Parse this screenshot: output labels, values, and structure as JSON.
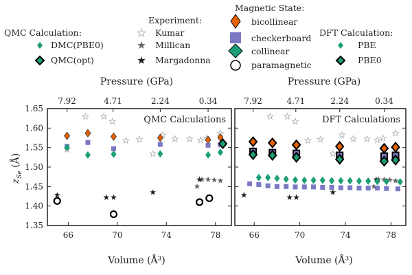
{
  "legend": {
    "qmc": {
      "title": "QMC Calculation:",
      "items": [
        "DMC(PBE0)",
        "QMC(opt)"
      ]
    },
    "experiment": {
      "title": "Experiment:",
      "items": [
        "Kumar",
        "Millican",
        "Margadonna"
      ]
    },
    "magnetic": {
      "title": "Magnetic State:",
      "items": [
        "bicollinear",
        "checkerboard",
        "collinear",
        "paramagnetic"
      ]
    },
    "dft": {
      "title": "DFT Calculation:",
      "items": [
        "PBE",
        "PBE0"
      ]
    }
  },
  "colors": {
    "bicollinear": "#e66100",
    "checkerboard": "#7b78c4",
    "collinear": "#1b9e77",
    "paramagnetic": "#ffffff",
    "kumar": "#b8b8b8",
    "millican": "#666666",
    "margadonna": "#222222"
  },
  "chart_data": [
    {
      "type": "scatter",
      "title": "QMC Calculations",
      "xlabel": "Volume (Å³)",
      "ylabel": "z_Se (Å)",
      "top_xlabel": "Pressure (GPa)",
      "xlim": [
        64.3,
        79.3
      ],
      "ylim": [
        1.35,
        1.65
      ],
      "x_ticks": [
        66,
        70,
        74,
        78
      ],
      "y_ticks": [
        1.35,
        1.4,
        1.45,
        1.5,
        1.55,
        1.6,
        1.65
      ],
      "top_ticks": [
        {
          "x": 65.9,
          "label": "7.92"
        },
        {
          "x": 69.65,
          "label": "4.71"
        },
        {
          "x": 73.5,
          "label": "2.24"
        },
        {
          "x": 77.4,
          "label": "0.34"
        }
      ],
      "series": [
        {
          "name": "Kumar",
          "marker": "star",
          "color": "#b8b8b8",
          "x": [
            65.9,
            67.4,
            68.9,
            69.6,
            70.7,
            71.8,
            72.9,
            73.7,
            74.7,
            75.9,
            76.8,
            77.3,
            78.4
          ],
          "y": [
            1.545,
            1.63,
            1.63,
            1.617,
            1.568,
            1.571,
            1.534,
            1.582,
            1.572,
            1.572,
            1.569,
            1.574,
            1.587
          ]
        },
        {
          "name": "Millican",
          "marker": "star",
          "color": "#666666",
          "x": [
            76.5,
            76.9,
            77.4,
            77.9,
            78.4
          ],
          "y": [
            1.45,
            1.468,
            1.468,
            1.467,
            1.465
          ]
        },
        {
          "name": "Margadonna",
          "marker": "star",
          "color": "#222222",
          "x": [
            65.1,
            69.1,
            69.7,
            72.9,
            76.7
          ],
          "y": [
            1.428,
            1.422,
            1.422,
            1.435,
            1.468
          ]
        },
        {
          "name": "DMC(PBE0) bicollinear",
          "marker": "diamond",
          "color": "#e66100",
          "x": [
            65.9,
            67.6,
            69.7,
            73.5,
            77.4,
            78.4
          ],
          "y": [
            1.58,
            1.587,
            1.578,
            1.575,
            1.57,
            1.576
          ]
        },
        {
          "name": "DMC(PBE0) checkerboard",
          "marker": "square",
          "color": "#7b78c4",
          "x": [
            65.9,
            67.6,
            69.7,
            73.5,
            77.4,
            78.4
          ],
          "y": [
            1.553,
            1.563,
            1.547,
            1.558,
            1.556,
            1.557
          ]
        },
        {
          "name": "DMC(PBE0) collinear",
          "marker": "diamond",
          "color": "#1b9e77",
          "x": [
            65.9,
            67.6,
            69.7,
            73.5,
            77.4,
            78.4
          ],
          "y": [
            1.55,
            1.531,
            1.533,
            1.534,
            1.531,
            1.538
          ]
        },
        {
          "name": "QMC(opt) paramagnetic",
          "marker": "circle",
          "color": "#ffffff",
          "x": [
            65.1,
            69.7,
            76.7,
            77.5
          ],
          "y": [
            1.413,
            1.379,
            1.41,
            1.42
          ]
        },
        {
          "name": "QMC(opt) collinear",
          "marker": "diamond-bold",
          "color": "#1b9e77",
          "x": [
            78.6
          ],
          "y": [
            1.56
          ]
        }
      ]
    },
    {
      "type": "scatter",
      "title": "DFT Calculations",
      "xlabel": "Volume (Å³)",
      "ylabel": "",
      "top_xlabel": "Pressure (GPa)",
      "xlim": [
        64.3,
        79.3
      ],
      "ylim": [
        1.35,
        1.65
      ],
      "x_ticks": [
        66,
        70,
        74,
        78
      ],
      "y_ticks": [
        1.35,
        1.4,
        1.45,
        1.5,
        1.55,
        1.6,
        1.65
      ],
      "top_ticks": [
        {
          "x": 65.9,
          "label": "7.92"
        },
        {
          "x": 69.65,
          "label": "4.71"
        },
        {
          "x": 73.5,
          "label": "2.24"
        },
        {
          "x": 77.4,
          "label": "0.34"
        }
      ],
      "series": [
        {
          "name": "Kumar",
          "marker": "star",
          "color": "#b8b8b8",
          "x": [
            65.9,
            67.4,
            68.9,
            69.6,
            70.7,
            71.8,
            72.9,
            73.7,
            74.7,
            75.9,
            76.8,
            77.3,
            78.4
          ],
          "y": [
            1.545,
            1.63,
            1.63,
            1.617,
            1.568,
            1.571,
            1.534,
            1.582,
            1.572,
            1.572,
            1.569,
            1.574,
            1.587
          ]
        },
        {
          "name": "Millican",
          "marker": "star",
          "color": "#666666",
          "x": [
            76.5,
            76.9,
            77.4,
            77.9,
            78.4
          ],
          "y": [
            1.45,
            1.468,
            1.468,
            1.467,
            1.465
          ]
        },
        {
          "name": "Margadonna",
          "marker": "star",
          "color": "#222222",
          "x": [
            65.1,
            69.1,
            69.7,
            72.9,
            76.7
          ],
          "y": [
            1.428,
            1.422,
            1.422,
            1.435,
            1.468
          ]
        },
        {
          "name": "PBE checkerboard",
          "marker": "square",
          "color": "#7b78c4",
          "x": [
            65.6,
            66.4,
            67.2,
            68.0,
            68.8,
            69.6,
            70.4,
            71.2,
            72.0,
            72.8,
            73.6,
            74.4,
            75.2,
            76.0,
            76.8,
            77.6,
            78.6
          ],
          "y": [
            1.457,
            1.455,
            1.452,
            1.45,
            1.45,
            1.449,
            1.449,
            1.449,
            1.448,
            1.448,
            1.447,
            1.447,
            1.446,
            1.446,
            1.446,
            1.445,
            1.444
          ]
        },
        {
          "name": "PBE collinear",
          "marker": "diamond",
          "color": "#1b9e77",
          "x": [
            66.4,
            67.2,
            68.0,
            68.8,
            69.6,
            70.4,
            71.2,
            72.0,
            72.8,
            73.6,
            74.4,
            75.2,
            76.0,
            76.8,
            77.6,
            78.8
          ],
          "y": [
            1.473,
            1.473,
            1.471,
            1.469,
            1.467,
            1.466,
            1.466,
            1.466,
            1.465,
            1.465,
            1.465,
            1.464,
            1.464,
            1.463,
            1.463,
            1.462
          ]
        },
        {
          "name": "PBE0 bicollinear",
          "marker": "diamond-bold",
          "color": "#e66100",
          "x": [
            65.9,
            67.6,
            69.7,
            73.5,
            77.4,
            78.4
          ],
          "y": [
            1.565,
            1.562,
            1.557,
            1.553,
            1.548,
            1.551
          ]
        },
        {
          "name": "PBE0 checkerboard",
          "marker": "square-bold",
          "color": "#7b78c4",
          "x": [
            65.9,
            67.6,
            69.7,
            73.5,
            77.4,
            78.4
          ],
          "y": [
            1.54,
            1.537,
            1.535,
            1.53,
            1.528,
            1.53
          ]
        },
        {
          "name": "PBE0 collinear",
          "marker": "diamond-bold",
          "color": "#1b9e77",
          "x": [
            65.9,
            67.6,
            69.7,
            73.5,
            77.4,
            78.4
          ],
          "y": [
            1.532,
            1.53,
            1.525,
            1.52,
            1.515,
            1.518
          ]
        }
      ]
    }
  ]
}
